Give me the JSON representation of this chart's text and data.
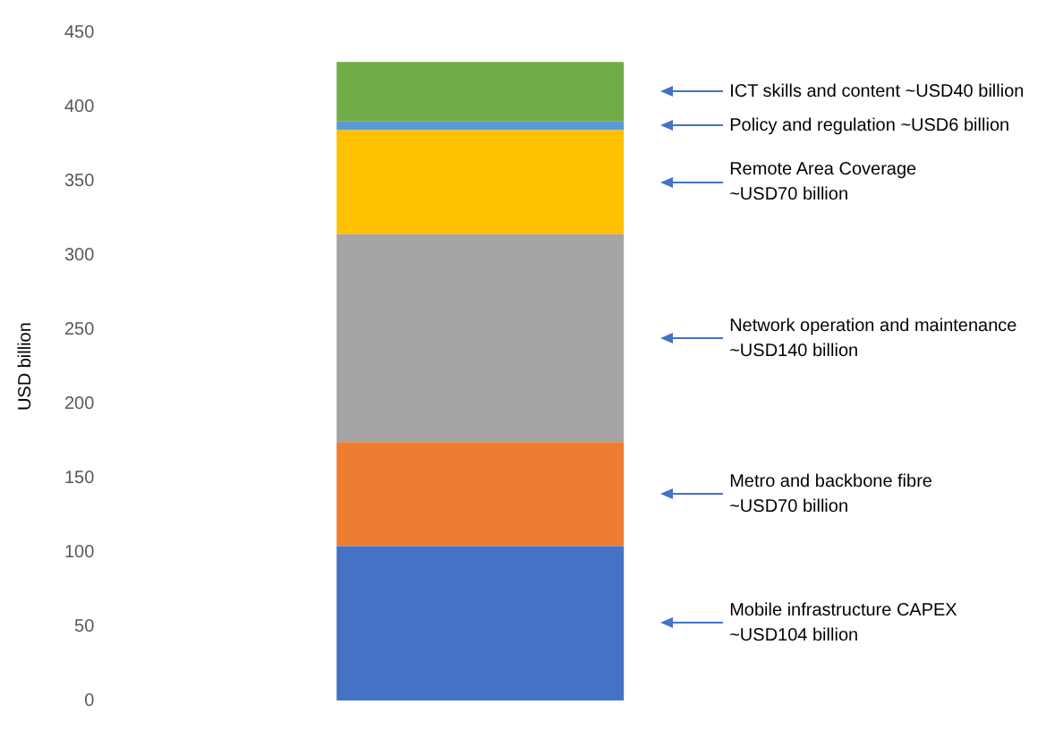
{
  "chart_data": {
    "type": "bar",
    "stacked": true,
    "ylabel": "USD billion",
    "categories": [
      null
    ],
    "series": [
      {
        "color": "#4472c4",
        "values": [
          104
        ]
      },
      {
        "color": "#ed7d31",
        "values": [
          70
        ]
      },
      {
        "color": "#a5a5a5",
        "values": [
          140
        ]
      },
      {
        "color": "#ffc000",
        "values": [
          70
        ]
      },
      {
        "color": "#5b9bd5",
        "values": [
          6
        ]
      },
      {
        "color": "#70ad47",
        "values": [
          40
        ]
      }
    ],
    "ylim": [
      0,
      450
    ],
    "yticks": [
      0,
      50,
      100,
      150,
      200,
      250,
      300,
      350,
      400,
      450
    ],
    "grid": false,
    "legend": false,
    "annotations": [
      "Mobile infrastructure CAPEX\n~USD104 billion",
      "Metro and backbone fibre\n~USD70 billion",
      "Network operation and maintenance\n~USD140 billion",
      "Remote Area Coverage\n~USD70 billion",
      "Policy and regulation ~USD6 billion",
      "ICT skills and content ~USD40 billion"
    ]
  }
}
